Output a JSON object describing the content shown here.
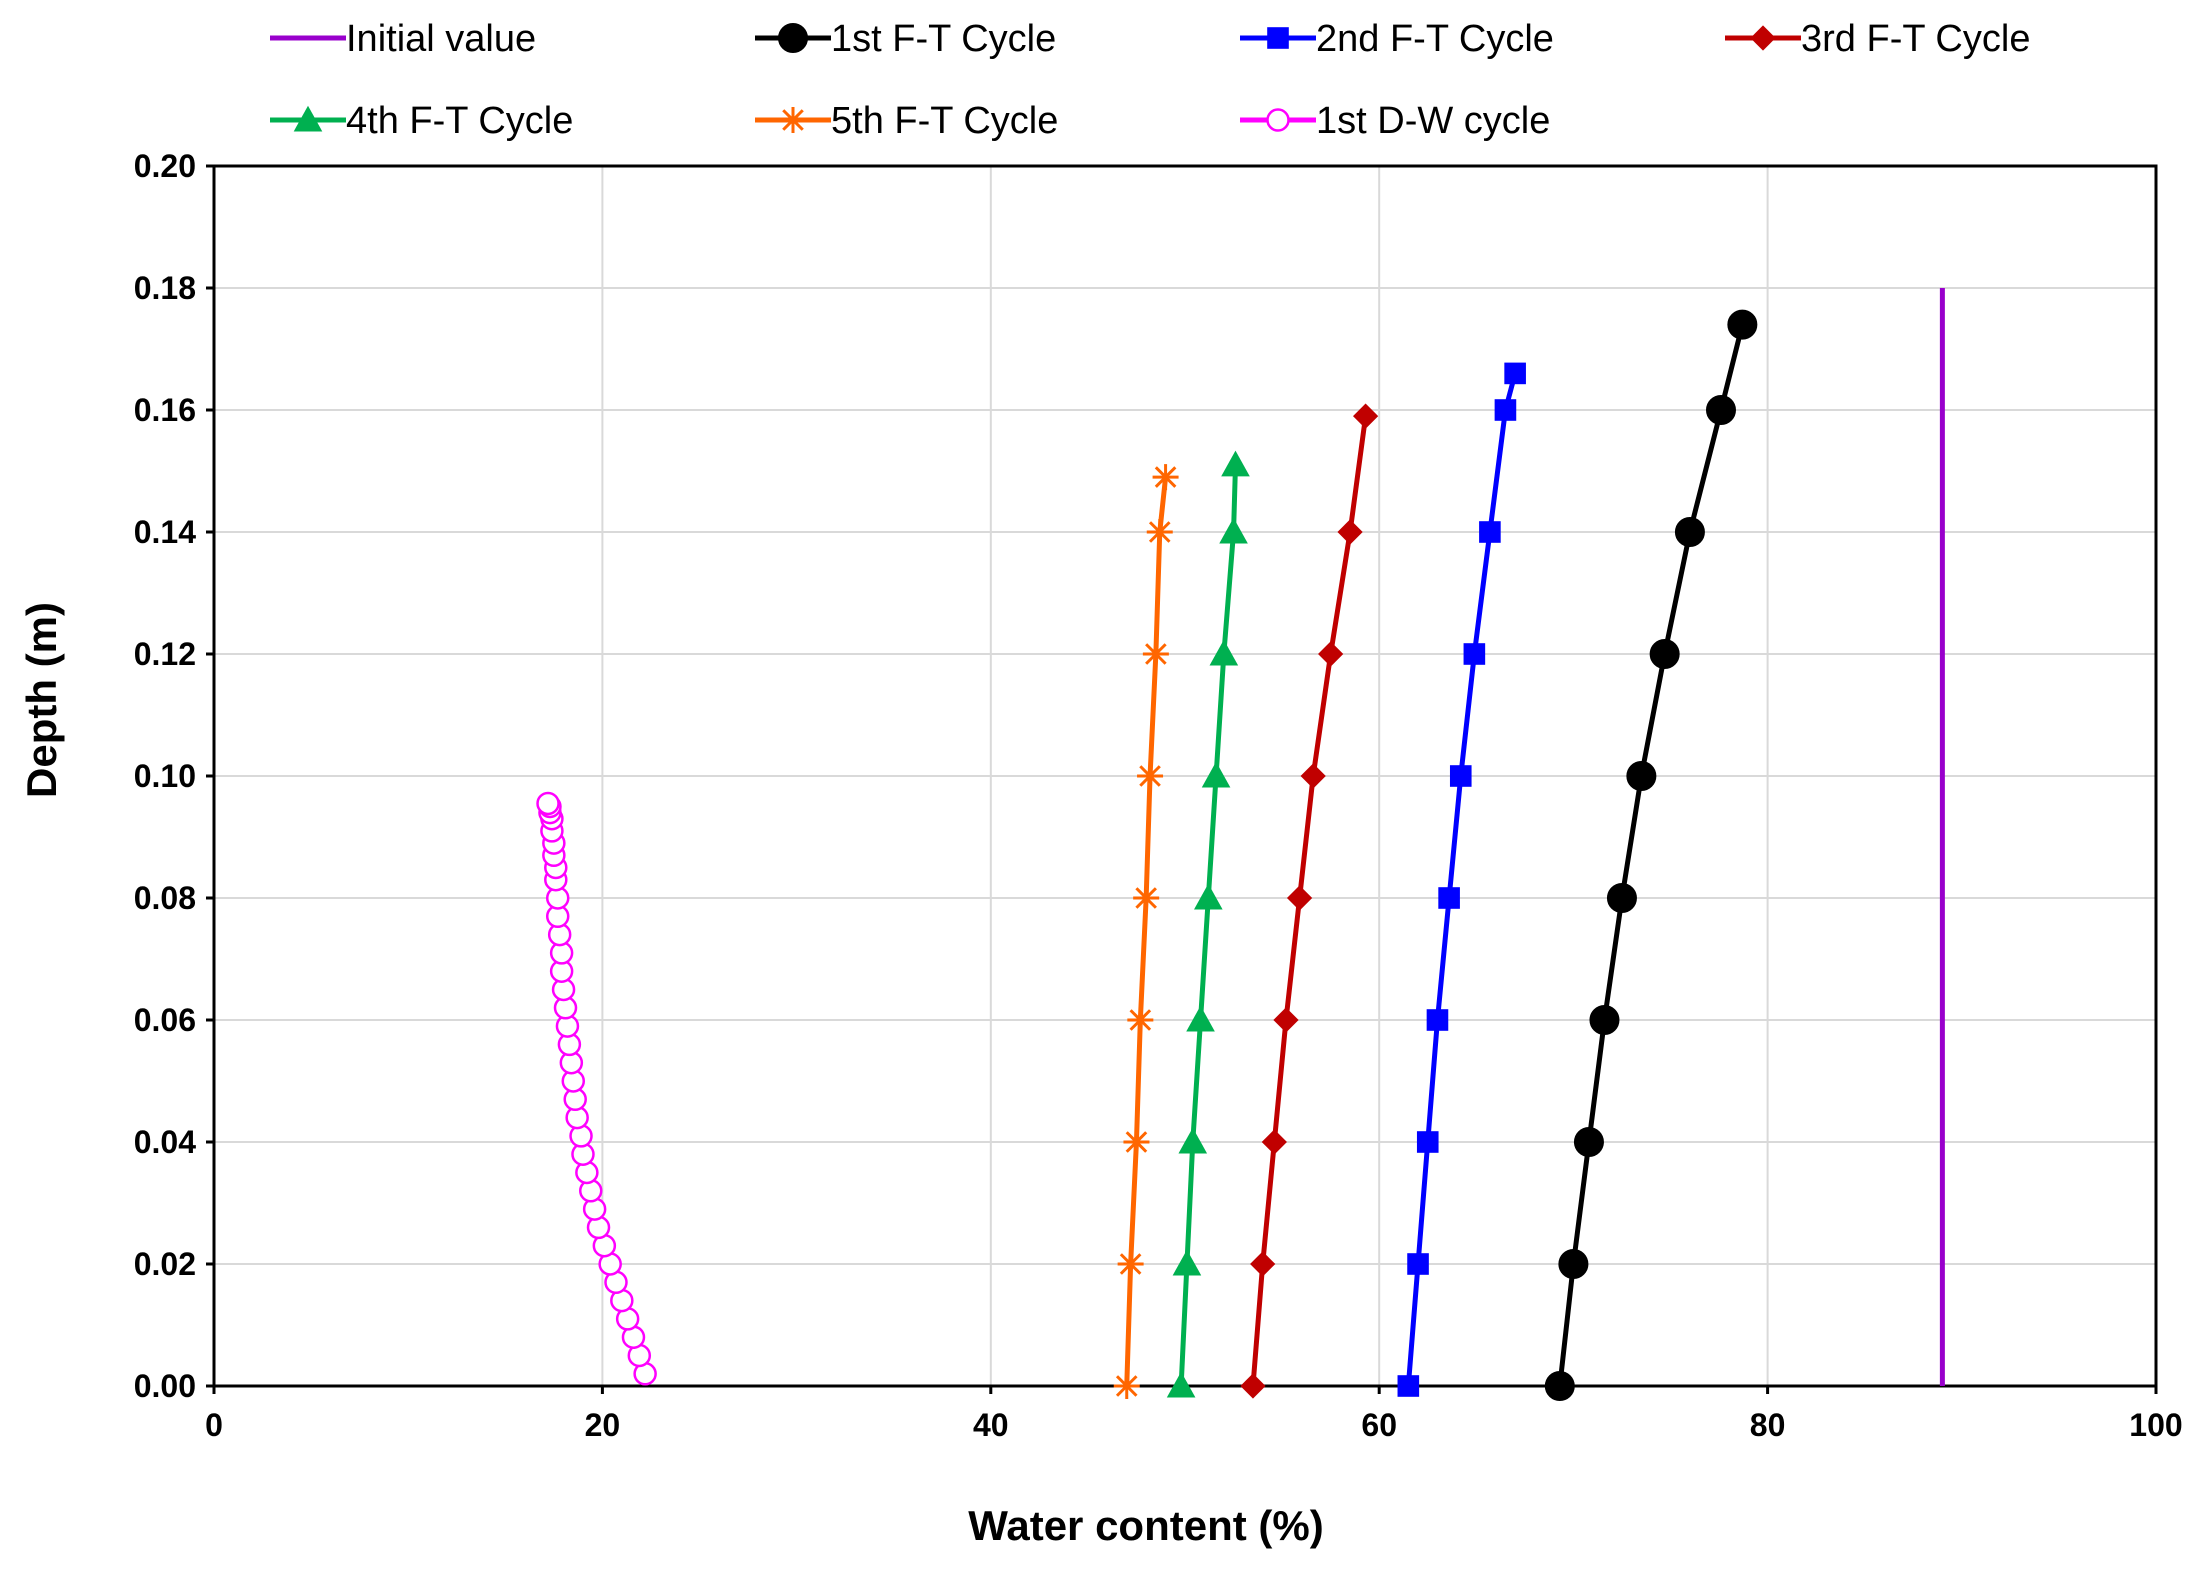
{
  "chart_data": {
    "type": "line",
    "xlabel": "Water content (%)",
    "ylabel": "Depth (m)",
    "xlim": [
      0,
      100
    ],
    "ylim": [
      0,
      0.2
    ],
    "x_ticks": [
      "0",
      "20",
      "40",
      "60",
      "80",
      "100"
    ],
    "y_ticks": [
      "0.00",
      "0.02",
      "0.04",
      "0.06",
      "0.08",
      "0.10",
      "0.12",
      "0.14",
      "0.16",
      "0.18",
      "0.20"
    ],
    "grid": true,
    "legend_position": "top",
    "series": [
      {
        "name": "Initial value",
        "color": "#9900cc",
        "marker": "none",
        "x": [
          89,
          89
        ],
        "y": [
          0.0,
          0.18
        ]
      },
      {
        "name": "1st F-T Cycle",
        "color": "#000000",
        "marker": "circle",
        "x": [
          69.3,
          70.0,
          70.8,
          71.6,
          72.5,
          73.5,
          74.7,
          76.0,
          77.6,
          78.7
        ],
        "y": [
          0.0,
          0.02,
          0.04,
          0.06,
          0.08,
          0.1,
          0.12,
          0.14,
          0.16,
          0.174
        ]
      },
      {
        "name": "2nd F-T Cycle",
        "color": "#0000ff",
        "marker": "square",
        "x": [
          61.5,
          62.0,
          62.5,
          63.0,
          63.6,
          64.2,
          64.9,
          65.7,
          66.5,
          67.0
        ],
        "y": [
          0.0,
          0.02,
          0.04,
          0.06,
          0.08,
          0.1,
          0.12,
          0.14,
          0.16,
          0.166
        ]
      },
      {
        "name": "3rd F-T Cycle",
        "color": "#c00000",
        "marker": "diamond",
        "x": [
          53.5,
          54.0,
          54.6,
          55.2,
          55.9,
          56.6,
          57.5,
          58.5,
          59.3
        ],
        "y": [
          0.0,
          0.02,
          0.04,
          0.06,
          0.08,
          0.1,
          0.12,
          0.14,
          0.159
        ]
      },
      {
        "name": "4th F-T Cycle",
        "color": "#00b050",
        "marker": "triangle",
        "x": [
          49.8,
          50.1,
          50.4,
          50.8,
          51.2,
          51.6,
          52.0,
          52.5,
          52.6
        ],
        "y": [
          0.0,
          0.02,
          0.04,
          0.06,
          0.08,
          0.1,
          0.12,
          0.14,
          0.151
        ]
      },
      {
        "name": "5th F-T Cycle",
        "color": "#ff6600",
        "marker": "star",
        "x": [
          47.0,
          47.2,
          47.5,
          47.7,
          48.0,
          48.2,
          48.5,
          48.7,
          49.0
        ],
        "y": [
          0.0,
          0.02,
          0.04,
          0.06,
          0.08,
          0.1,
          0.12,
          0.14,
          0.149
        ]
      },
      {
        "name": "1st D-W cycle",
        "color": "#ff00ff",
        "marker": "open-circle",
        "x": [
          22.2,
          21.9,
          21.6,
          21.3,
          21.0,
          20.7,
          20.4,
          20.1,
          19.8,
          19.6,
          19.4,
          19.2,
          19.0,
          18.9,
          18.7,
          18.6,
          18.5,
          18.4,
          18.3,
          18.2,
          18.1,
          18.0,
          17.9,
          17.9,
          17.8,
          17.7,
          17.7,
          17.6,
          17.6,
          17.5,
          17.5,
          17.4,
          17.4,
          17.3,
          17.3,
          17.2
        ],
        "y": [
          0.002,
          0.005,
          0.008,
          0.011,
          0.014,
          0.017,
          0.02,
          0.023,
          0.026,
          0.029,
          0.032,
          0.035,
          0.038,
          0.041,
          0.044,
          0.047,
          0.05,
          0.053,
          0.056,
          0.059,
          0.062,
          0.065,
          0.068,
          0.071,
          0.074,
          0.077,
          0.08,
          0.083,
          0.085,
          0.087,
          0.089,
          0.091,
          0.093,
          0.094,
          0.095,
          0.0955
        ]
      }
    ]
  }
}
